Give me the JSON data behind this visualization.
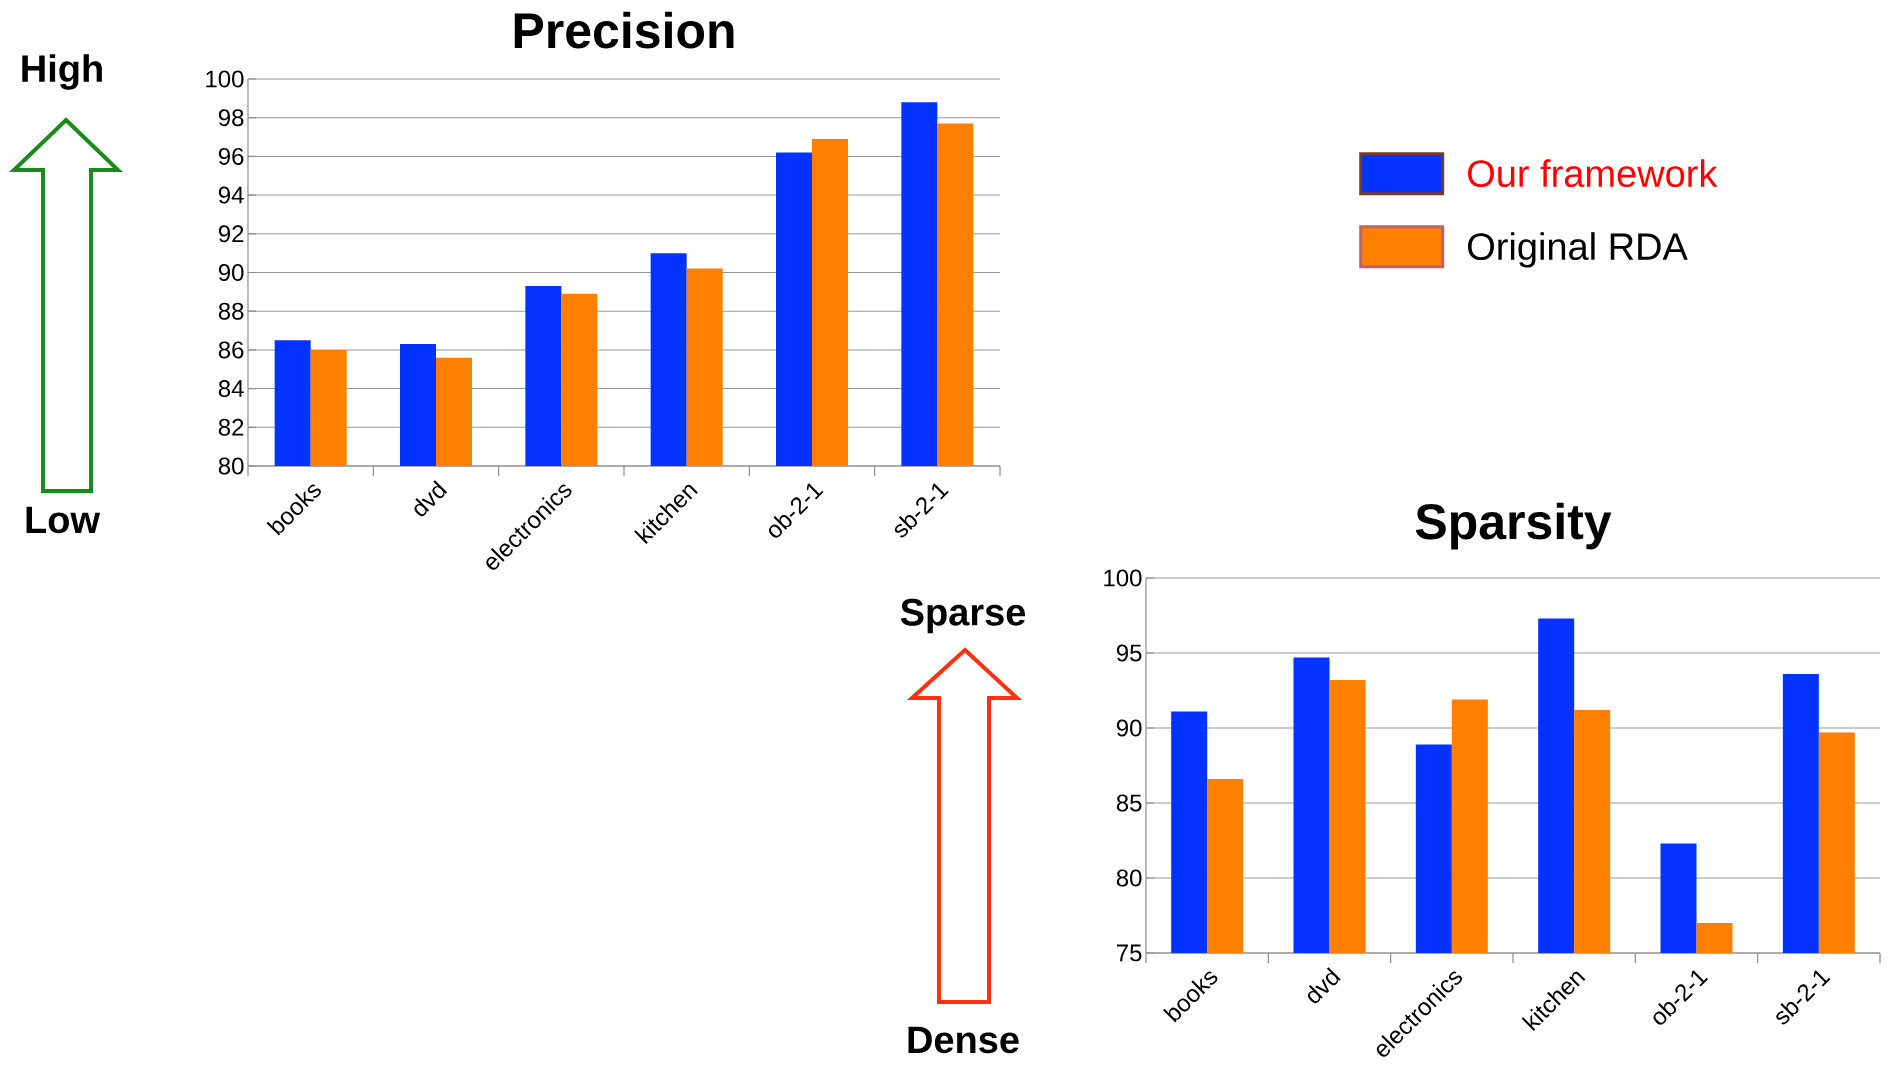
{
  "chart_data": [
    {
      "type": "bar",
      "title": "Precision",
      "categories": [
        "books",
        "dvd",
        "electronics",
        "kitchen",
        "ob-2-1",
        "sb-2-1"
      ],
      "series": [
        {
          "name": "Our framework",
          "color": "#0433ff",
          "values": [
            86.5,
            86.3,
            89.3,
            91.0,
            96.2,
            98.8
          ]
        },
        {
          "name": "Original RDA",
          "color": "#ff7f00",
          "values": [
            86.0,
            85.6,
            88.9,
            90.2,
            96.9,
            97.7
          ]
        }
      ],
      "ylim": [
        80,
        100
      ],
      "yticks": [
        80,
        82,
        84,
        86,
        88,
        90,
        92,
        94,
        96,
        98,
        100
      ],
      "grid": "y",
      "legend": "right",
      "annotations": [
        "High",
        "Low"
      ]
    },
    {
      "type": "bar",
      "title": "Sparsity",
      "categories": [
        "books",
        "dvd",
        "electronics",
        "kitchen",
        "ob-2-1",
        "sb-2-1"
      ],
      "series": [
        {
          "color": "#0433ff",
          "values": [
            91.1,
            94.7,
            88.9,
            97.3,
            82.3,
            93.6
          ]
        },
        {
          "color": "#ff7f00",
          "values": [
            86.6,
            93.2,
            91.9,
            91.2,
            77.0,
            89.7
          ]
        }
      ],
      "ylim": [
        75,
        100
      ],
      "yticks": [
        75,
        80,
        85,
        90,
        95,
        100
      ],
      "grid": "y",
      "annotations": [
        "Sparse",
        "Dense"
      ]
    }
  ]
}
